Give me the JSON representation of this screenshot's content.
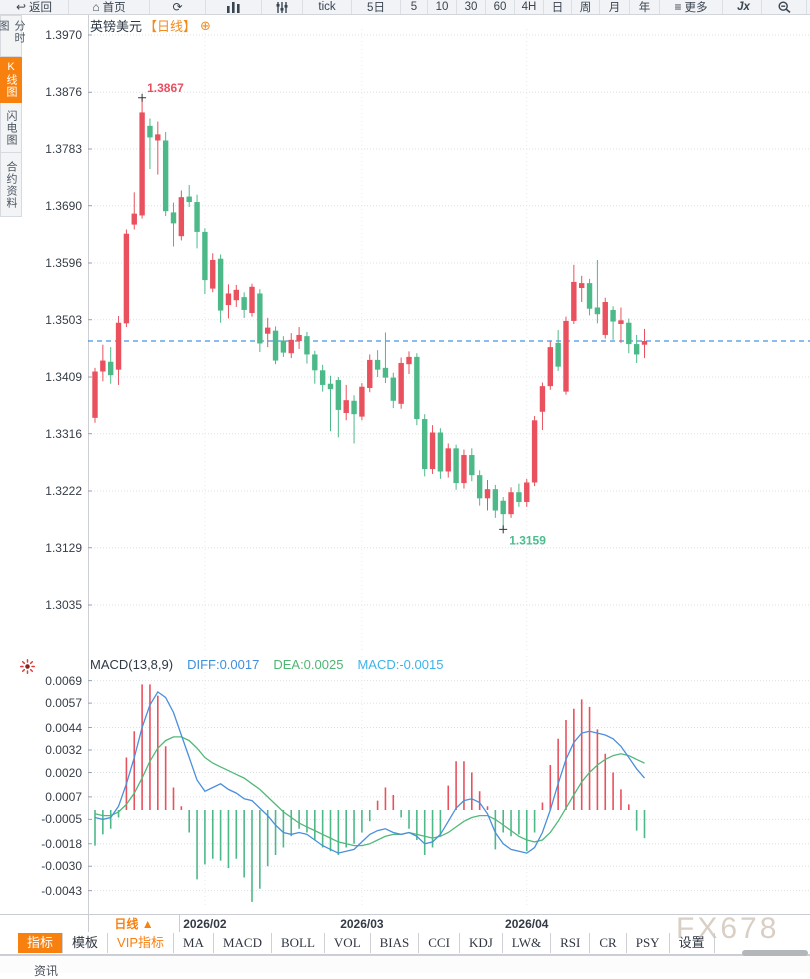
{
  "toolbar": {
    "items": [
      {
        "icon": "back-icon",
        "label": "返回"
      },
      {
        "icon": "home-icon",
        "label": "首页"
      },
      {
        "icon": "refresh-icon",
        "label": ""
      },
      {
        "icon": "bar-chart-icon",
        "label": ""
      },
      {
        "icon": "sliders-icon",
        "label": ""
      },
      {
        "icon": "",
        "label": "tick"
      },
      {
        "icon": "",
        "label": "5日"
      },
      {
        "icon": "",
        "label": "5"
      },
      {
        "icon": "",
        "label": "10"
      },
      {
        "icon": "",
        "label": "30"
      },
      {
        "icon": "",
        "label": "60"
      },
      {
        "icon": "",
        "label": "4H"
      },
      {
        "icon": "",
        "label": "日"
      },
      {
        "icon": "",
        "label": "周"
      },
      {
        "icon": "",
        "label": "月"
      },
      {
        "icon": "",
        "label": "年"
      },
      {
        "icon": "menu-icon",
        "label": "更多"
      },
      {
        "icon": "fx-icon",
        "label": "Jx"
      },
      {
        "icon": "zoom-out-icon",
        "label": ""
      }
    ]
  },
  "sidebar": {
    "tabs": [
      {
        "label": "分时图",
        "active": false
      },
      {
        "label": "K线图",
        "active": true
      },
      {
        "label": "闪电图",
        "active": false
      },
      {
        "label": "合约资料",
        "active": false
      }
    ]
  },
  "chart_header": {
    "symbol": "英镑美元",
    "period_tag": "【日线】",
    "add_icon": "⊕"
  },
  "macd_header": {
    "title": "MACD(13,8,9)",
    "diff_label": "DIFF:0.0017",
    "dea_label": "DEA:0.0025",
    "macd_label": "MACD:-0.0015"
  },
  "x_axis": {
    "period_selector": "日线 ▲"
  },
  "indicator_bar": {
    "tabs": [
      "指标",
      "模板",
      "VIP指标",
      "MA",
      "MACD",
      "BOLL",
      "VOL",
      "BIAS",
      "CCI",
      "KDJ",
      "LW&",
      "RSI",
      "CR",
      "PSY",
      "设置"
    ],
    "active_tab": "指标",
    "vip_tab": "VIP指标"
  },
  "watermark": "FX678",
  "status_bar": {
    "clipped_text": "资讯"
  },
  "colors": {
    "up": "#e9515e",
    "down": "#4db989",
    "diff_line": "#4a8fdc",
    "dea_line": "#52b878",
    "macd_value_text": "#3fb3e8",
    "last_price_line": "#1778e0",
    "accent_orange": "#f8800f",
    "grid": "#dbe0e6",
    "annotation_high": "#e94f5f",
    "annotation_low": "#4bbd8d"
  },
  "chart_data": {
    "type": "candlestick",
    "title": "英镑美元 日线 (GBP/USD Daily)",
    "main": {
      "ylim": [
        1.3035,
        1.397
      ],
      "yticks": [
        1.397,
        1.3876,
        1.3783,
        1.369,
        1.3596,
        1.3503,
        1.3409,
        1.3316,
        1.3222,
        1.3129,
        1.3035
      ],
      "last_price": 1.3468,
      "high_label": {
        "text": "1.3867",
        "index": 6
      },
      "low_label": {
        "text": "1.3159",
        "index": 52
      },
      "candles": [
        [
          1.3342,
          1.3424,
          1.3334,
          1.3418
        ],
        [
          1.3418,
          1.3462,
          1.3402,
          1.3436
        ],
        [
          1.3434,
          1.3458,
          1.3398,
          1.3412
        ],
        [
          1.3421,
          1.3509,
          1.3396,
          1.3498
        ],
        [
          1.3497,
          1.3651,
          1.3491,
          1.3644
        ],
        [
          1.3659,
          1.3712,
          1.3651,
          1.3677
        ],
        [
          1.3674,
          1.3867,
          1.3669,
          1.3843
        ],
        [
          1.3821,
          1.3833,
          1.375,
          1.3802
        ],
        [
          1.3797,
          1.3828,
          1.3741,
          1.3807
        ],
        [
          1.3797,
          1.3811,
          1.3673,
          1.3681
        ],
        [
          1.3679,
          1.3695,
          1.3623,
          1.3661
        ],
        [
          1.364,
          1.3715,
          1.3633,
          1.3704
        ],
        [
          1.3705,
          1.3724,
          1.3688,
          1.3696
        ],
        [
          1.3696,
          1.3708,
          1.362,
          1.3647
        ],
        [
          1.3647,
          1.3653,
          1.3545,
          1.3568
        ],
        [
          1.3554,
          1.3612,
          1.3548,
          1.3601
        ],
        [
          1.3603,
          1.361,
          1.3498,
          1.3518
        ],
        [
          1.3527,
          1.3561,
          1.3505,
          1.3546
        ],
        [
          1.3535,
          1.356,
          1.3524,
          1.3552
        ],
        [
          1.354,
          1.3548,
          1.3506,
          1.3519
        ],
        [
          1.3514,
          1.3562,
          1.3508,
          1.3557
        ],
        [
          1.3546,
          1.3553,
          1.345,
          1.3464
        ],
        [
          1.348,
          1.3506,
          1.3458,
          1.349
        ],
        [
          1.3485,
          1.3492,
          1.343,
          1.3436
        ],
        [
          1.3469,
          1.3476,
          1.3442,
          1.3449
        ],
        [
          1.3448,
          1.3481,
          1.344,
          1.347
        ],
        [
          1.3468,
          1.3491,
          1.3455,
          1.3478
        ],
        [
          1.3476,
          1.3483,
          1.3431,
          1.3446
        ],
        [
          1.3446,
          1.3452,
          1.3398,
          1.342
        ],
        [
          1.342,
          1.3429,
          1.3385,
          1.3396
        ],
        [
          1.3398,
          1.3411,
          1.332,
          1.3389
        ],
        [
          1.3404,
          1.3409,
          1.331,
          1.3355
        ],
        [
          1.335,
          1.3396,
          1.3338,
          1.3371
        ],
        [
          1.337,
          1.3379,
          1.33,
          1.3348
        ],
        [
          1.3344,
          1.3399,
          1.3338,
          1.3393
        ],
        [
          1.3391,
          1.3446,
          1.3384,
          1.3437
        ],
        [
          1.3437,
          1.3453,
          1.3409,
          1.3421
        ],
        [
          1.3424,
          1.3482,
          1.3399,
          1.3408
        ],
        [
          1.3408,
          1.3416,
          1.3358,
          1.337
        ],
        [
          1.3365,
          1.3441,
          1.3357,
          1.3432
        ],
        [
          1.343,
          1.3451,
          1.3414,
          1.3442
        ],
        [
          1.3442,
          1.3448,
          1.333,
          1.334
        ],
        [
          1.334,
          1.3348,
          1.3246,
          1.3258
        ],
        [
          1.3258,
          1.333,
          1.325,
          1.3318
        ],
        [
          1.3318,
          1.3325,
          1.3242,
          1.3254
        ],
        [
          1.3254,
          1.33,
          1.3244,
          1.3292
        ],
        [
          1.3292,
          1.3298,
          1.3224,
          1.3235
        ],
        [
          1.3235,
          1.329,
          1.3226,
          1.3281
        ],
        [
          1.3281,
          1.3292,
          1.3238,
          1.3248
        ],
        [
          1.3248,
          1.3256,
          1.3198,
          1.321
        ],
        [
          1.321,
          1.324,
          1.319,
          1.3225
        ],
        [
          1.3225,
          1.3232,
          1.3178,
          1.319
        ],
        [
          1.3206,
          1.3212,
          1.3159,
          1.3184
        ],
        [
          1.3184,
          1.3228,
          1.3178,
          1.322
        ],
        [
          1.322,
          1.3234,
          1.3196,
          1.3204
        ],
        [
          1.3204,
          1.3242,
          1.3196,
          1.3236
        ],
        [
          1.3236,
          1.3345,
          1.323,
          1.3338
        ],
        [
          1.3352,
          1.34,
          1.3322,
          1.3394
        ],
        [
          1.3394,
          1.3468,
          1.3388,
          1.3458
        ],
        [
          1.3465,
          1.3486,
          1.3419,
          1.3426
        ],
        [
          1.3385,
          1.3508,
          1.338,
          1.3501
        ],
        [
          1.3501,
          1.3593,
          1.3496,
          1.3565
        ],
        [
          1.3555,
          1.3575,
          1.3532,
          1.3563
        ],
        [
          1.3563,
          1.357,
          1.351,
          1.3521
        ],
        [
          1.3523,
          1.3601,
          1.3497,
          1.3512
        ],
        [
          1.3478,
          1.3539,
          1.3472,
          1.3532
        ],
        [
          1.3519,
          1.3525,
          1.347,
          1.35
        ],
        [
          1.3496,
          1.3523,
          1.3465,
          1.3502
        ],
        [
          1.3498,
          1.3505,
          1.3448,
          1.3463
        ],
        [
          1.3463,
          1.3478,
          1.3432,
          1.3446
        ],
        [
          1.3462,
          1.3488,
          1.344,
          1.3468
        ]
      ]
    },
    "macd": {
      "params": "(13,8,9)",
      "diff_value": 0.0017,
      "dea_value": 0.0025,
      "macd_value": -0.0015,
      "yticks": [
        0.0069,
        0.0057,
        0.0044,
        0.0032,
        0.002,
        0.0007,
        -0.0005,
        -0.0018,
        -0.003,
        -0.0043
      ],
      "histogram": [
        -0.0019,
        -0.0013,
        -0.001,
        -0.0004,
        0.0028,
        0.0042,
        0.0067,
        0.0067,
        0.0061,
        0.0034,
        0.0012,
        0.0002,
        -0.0012,
        -0.0037,
        -0.0029,
        -0.0026,
        -0.0027,
        -0.0031,
        -0.0026,
        -0.0036,
        -0.0049,
        -0.0042,
        -0.003,
        -0.0024,
        -0.002,
        -0.0014,
        -0.001,
        -0.0012,
        -0.0016,
        -0.002,
        -0.0022,
        -0.0024,
        -0.002,
        -0.0018,
        -0.0012,
        -0.0006,
        0.0005,
        0.0012,
        0.0008,
        -0.0004,
        -0.001,
        -0.0016,
        -0.0024,
        -0.002,
        -0.0014,
        0.0013,
        0.0026,
        0.0026,
        0.002,
        0.001,
        0.0002,
        -0.0021,
        -0.0012,
        -0.0014,
        -0.0013,
        -0.0022,
        -0.0012,
        0.0004,
        0.0024,
        0.0038,
        0.0048,
        0.0054,
        0.0059,
        0.0055,
        0.0043,
        0.003,
        0.002,
        0.0011,
        0.0003,
        -0.0011,
        -0.0015
      ],
      "diff": [
        -0.0004,
        -0.0005,
        -0.0004,
        0.0002,
        0.0014,
        0.0028,
        0.0044,
        0.0056,
        0.0063,
        0.006,
        0.0052,
        0.004,
        0.0028,
        0.0016,
        0.001,
        0.0012,
        0.0014,
        0.0011,
        0.0009,
        0.0006,
        0.0005,
        0.0001,
        -0.0003,
        -0.0008,
        -0.0012,
        -0.0013,
        -0.0012,
        -0.0013,
        -0.0016,
        -0.0019,
        -0.0021,
        -0.0023,
        -0.0022,
        -0.0021,
        -0.0017,
        -0.0013,
        -0.0011,
        -0.001,
        -0.0012,
        -0.0013,
        -0.0012,
        -0.0014,
        -0.0018,
        -0.0017,
        -0.0013,
        -0.0006,
        0.0001,
        0.0005,
        0.0006,
        0.0004,
        -0.0002,
        -0.0012,
        -0.0018,
        -0.0021,
        -0.0022,
        -0.0023,
        -0.002,
        -0.0012,
        0.0,
        0.0014,
        0.0027,
        0.0036,
        0.0041,
        0.0042,
        0.0041,
        0.004,
        0.0038,
        0.0034,
        0.0028,
        0.0022,
        0.0017
      ],
      "dea": [
        -0.0002,
        -0.0003,
        -0.0003,
        -0.0001,
        0.0003,
        0.0009,
        0.0017,
        0.0026,
        0.0033,
        0.0037,
        0.0039,
        0.0039,
        0.0037,
        0.0033,
        0.0028,
        0.0025,
        0.0023,
        0.0021,
        0.0019,
        0.0017,
        0.0014,
        0.0011,
        0.0007,
        0.0003,
        -0.0001,
        -0.0004,
        -0.0007,
        -0.0009,
        -0.0011,
        -0.0013,
        -0.0015,
        -0.0017,
        -0.0018,
        -0.0019,
        -0.0019,
        -0.0018,
        -0.0016,
        -0.0014,
        -0.0013,
        -0.0013,
        -0.0012,
        -0.0013,
        -0.0014,
        -0.0015,
        -0.0014,
        -0.0012,
        -0.0009,
        -0.0006,
        -0.0004,
        -0.0003,
        -0.0003,
        -0.0005,
        -0.0008,
        -0.0011,
        -0.0014,
        -0.0016,
        -0.0017,
        -0.0016,
        -0.0012,
        -0.0006,
        0.0001,
        0.0008,
        0.0015,
        0.002,
        0.0024,
        0.0027,
        0.0029,
        0.003,
        0.0029,
        0.0027,
        0.0025
      ]
    },
    "x_months": [
      {
        "label": "2026/02",
        "index": 14
      },
      {
        "label": "2026/03",
        "index": 34
      },
      {
        "label": "2026/04",
        "index": 55
      }
    ]
  }
}
